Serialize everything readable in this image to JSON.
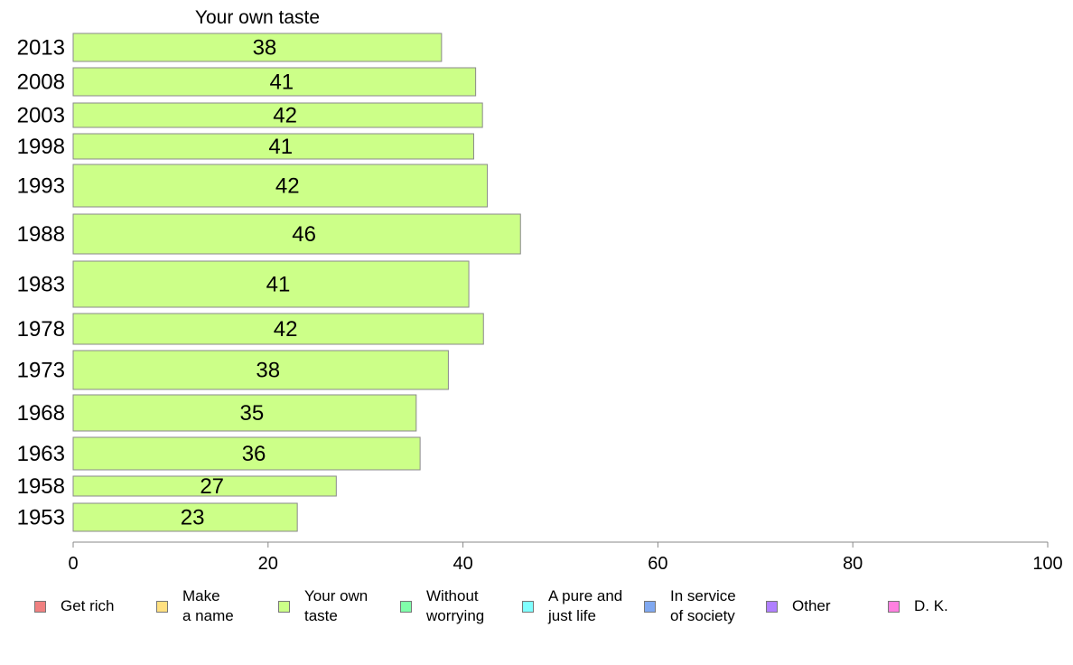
{
  "chart_data": {
    "type": "bar",
    "orientation": "horizontal",
    "title": "Your own taste",
    "categories": [
      "2013",
      "2008",
      "2003",
      "1998",
      "1993",
      "1988",
      "1983",
      "1978",
      "1973",
      "1968",
      "1963",
      "1958",
      "1953"
    ],
    "series": [
      {
        "name": "Your own taste",
        "values": [
          38,
          41,
          42,
          41,
          42,
          46,
          41,
          42,
          38,
          35,
          36,
          27,
          23
        ]
      }
    ],
    "value_labels": [
      "38",
      "41",
      "42",
      "41",
      "42",
      "46",
      "41",
      "42",
      "38",
      "35",
      "36",
      "27",
      "23"
    ],
    "xlim": [
      0,
      100
    ],
    "x_ticks": [
      "0",
      "20",
      "40",
      "60",
      "80",
      "100"
    ],
    "xlabel": "",
    "ylabel": "",
    "grid": false,
    "legend_position": "bottom",
    "bar_color": "#CCFF88",
    "exact_values": [
      37.8,
      41.3,
      42.0,
      41.1,
      42.5,
      45.9,
      40.6,
      42.1,
      38.5,
      35.2,
      35.6,
      27.0,
      23.0
    ]
  },
  "legend": [
    {
      "label": "Get rich",
      "color": "#F08080"
    },
    {
      "label": "Make\na name",
      "color": "#FFE080"
    },
    {
      "label": "Your own\ntaste",
      "color": "#CCFF88"
    },
    {
      "label": "Without\nworrying",
      "color": "#80FFAA"
    },
    {
      "label": "A pure and\njust life",
      "color": "#80FFFF"
    },
    {
      "label": "In service\nof society",
      "color": "#80A8F0"
    },
    {
      "label": "Other",
      "color": "#B080FF"
    },
    {
      "label": "D. K.",
      "color": "#FF80E0"
    }
  ]
}
